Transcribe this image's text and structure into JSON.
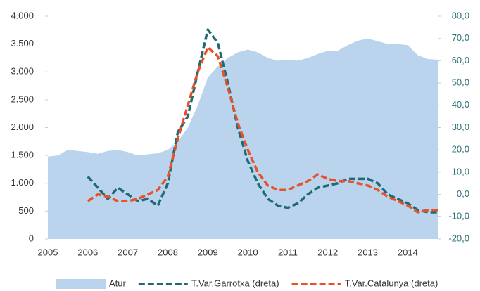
{
  "chart_data": {
    "type": "area_line",
    "categories": [
      "2005",
      null,
      null,
      null,
      "2006",
      null,
      null,
      null,
      "2007",
      null,
      null,
      null,
      "2008",
      null,
      null,
      null,
      "2009",
      null,
      null,
      null,
      "2010",
      null,
      null,
      null,
      "2011",
      null,
      null,
      null,
      "2012",
      null,
      null,
      null,
      "2013",
      null,
      null,
      null,
      "2014",
      null,
      null,
      null
    ],
    "series": [
      {
        "name": "Atur",
        "color": "#b9d4ec",
        "kind": "area",
        "axis": "y",
        "values": [
          1480,
          1500,
          1600,
          1580,
          1560,
          1530,
          1580,
          1600,
          1560,
          1500,
          1520,
          1540,
          1600,
          1750,
          2000,
          2400,
          2900,
          3100,
          3250,
          3350,
          3400,
          3350,
          3250,
          3200,
          3220,
          3200,
          3250,
          3320,
          3380,
          3380,
          3480,
          3560,
          3600,
          3550,
          3500,
          3500,
          3480,
          3300,
          3230,
          3220
        ]
      },
      {
        "name": "T.Var.Garrotxa (dreta)",
        "color": "#1f6b75",
        "kind": "line",
        "axis": "y2",
        "values": [
          null,
          null,
          null,
          null,
          8,
          3,
          -2,
          3,
          0,
          -3,
          -2,
          -5,
          5,
          28,
          35,
          55,
          74,
          68,
          50,
          30,
          15,
          5,
          -2,
          -5,
          -6,
          -4,
          0,
          3,
          4,
          5,
          7,
          7,
          7,
          5,
          0,
          -2,
          -4,
          -7,
          -8,
          -8
        ]
      },
      {
        "name": "T.Var.Catalunya (dreta)",
        "color": "#e8522a",
        "kind": "line",
        "axis": "y2",
        "values": [
          null,
          null,
          null,
          null,
          -3,
          0,
          -1,
          -3,
          -3,
          -2,
          0,
          2,
          8,
          25,
          40,
          55,
          66,
          62,
          48,
          32,
          20,
          10,
          4,
          2,
          2,
          4,
          6,
          9,
          7,
          6,
          6,
          5,
          4,
          2,
          -1,
          -3,
          -5,
          -8,
          -7,
          -7
        ]
      }
    ],
    "ylim": [
      0,
      4000
    ],
    "yticks": [
      0,
      500,
      {
        "value": 1000,
        "label": "1.000"
      },
      {
        "value": 1500,
        "label": "1.500"
      },
      {
        "value": 2000,
        "label": "2.000"
      },
      {
        "value": 2500,
        "label": "2.500"
      },
      {
        "value": 3000,
        "label": "3.000"
      },
      {
        "value": 3500,
        "label": "3.500"
      },
      {
        "value": 4000,
        "label": "4.000"
      }
    ],
    "y2lim": [
      -20,
      80
    ],
    "y2ticks": [
      {
        "value": -20,
        "label": "-20,0"
      },
      {
        "value": -10,
        "label": "-10,0"
      },
      {
        "value": 0,
        "label": "0,0"
      },
      {
        "value": 10,
        "label": "10,0"
      },
      {
        "value": 20,
        "label": "20,0"
      },
      {
        "value": 30,
        "label": "30,0"
      },
      {
        "value": 40,
        "label": "40,0"
      },
      {
        "value": 50,
        "label": "50,0"
      },
      {
        "value": 60,
        "label": "60,0"
      },
      {
        "value": 70,
        "label": "70,0"
      },
      {
        "value": 80,
        "label": "80,0"
      }
    ],
    "grid": false
  }
}
